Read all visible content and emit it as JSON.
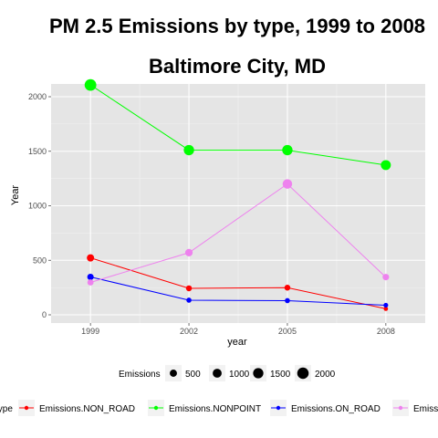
{
  "chart_data": {
    "type": "line",
    "title_line1": "PM 2.5 Emissions by type, 1999 to 2008",
    "title_line2": "Baltimore City, MD",
    "xlabel": "year",
    "ylabel": "Year",
    "x": [
      1999,
      2002,
      2005,
      2008
    ],
    "x_ticks": [
      "1999",
      "2002",
      "2005",
      "2008"
    ],
    "y_ticks": [
      0,
      500,
      1000,
      1500,
      2000
    ],
    "ylim": [
      0,
      2100
    ],
    "grid": true,
    "legend_placement": "bottom",
    "series": [
      {
        "name": "Emissions.NON_ROAD",
        "color": "#ff0000",
        "values": [
          522,
          243,
          249,
          55
        ]
      },
      {
        "name": "Emissions.NONPOINT",
        "color": "#00ff00",
        "values": [
          2108,
          1510,
          1510,
          1373
        ]
      },
      {
        "name": "Emissions.ON_ROAD",
        "color": "#0000ff",
        "values": [
          347,
          134,
          130,
          88
        ]
      },
      {
        "name": "Emissions.POINT",
        "color": "#ee82ee",
        "values": [
          297,
          570,
          1200,
          346
        ]
      }
    ],
    "size_legend": {
      "title": "Emissions",
      "breaks": [
        500,
        1000,
        1500,
        2000
      ],
      "labels": [
        "500",
        "1000",
        "1500",
        "2000"
      ]
    },
    "color_legend": {
      "title": "type"
    }
  }
}
